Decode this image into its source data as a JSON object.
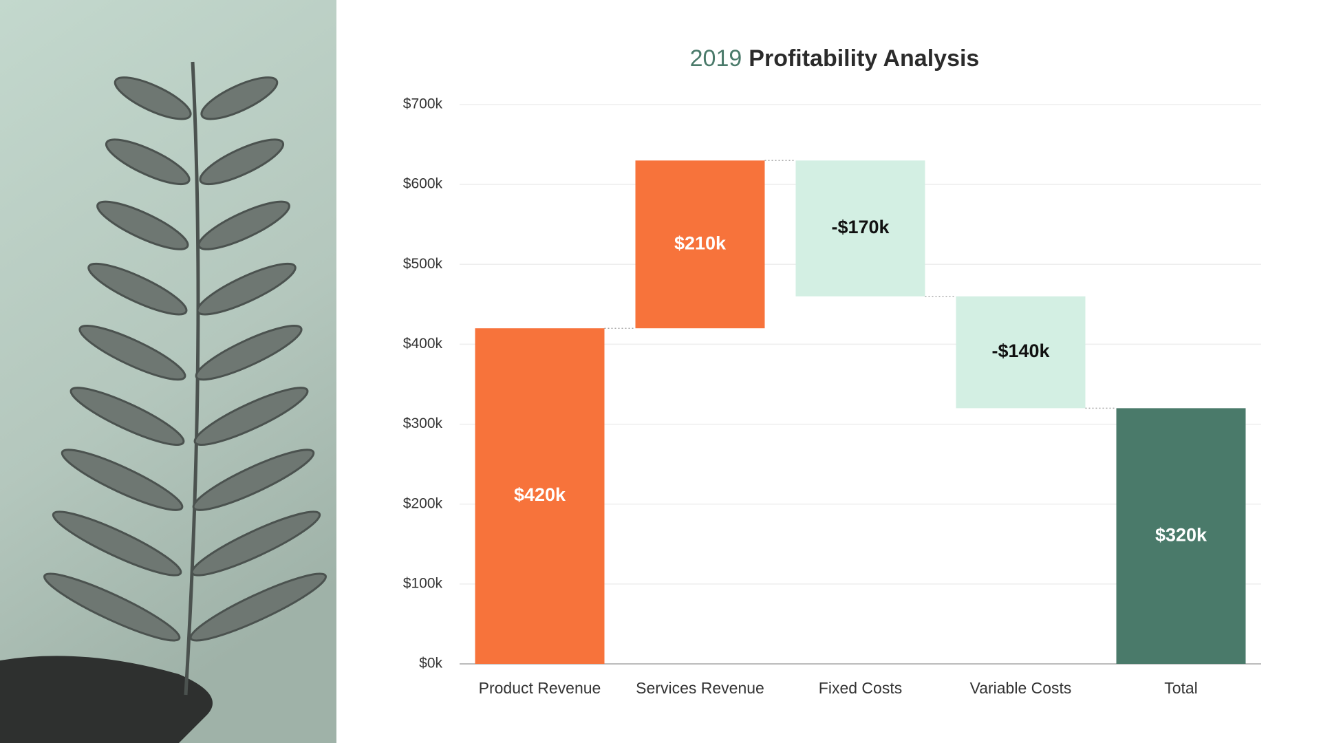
{
  "chart_data": {
    "type": "waterfall",
    "title_parts": [
      "2019",
      "Profitability Analysis"
    ],
    "title_colors": [
      "#4a7a6a",
      "#2b2b2b"
    ],
    "categories": [
      "Product Revenue",
      "Services Revenue",
      "Fixed Costs",
      "Variable Costs",
      "Total"
    ],
    "values": [
      420,
      210,
      -170,
      -140,
      320
    ],
    "value_labels": [
      "$420k",
      "$210k",
      "-$170k",
      "-$140k",
      "$320k"
    ],
    "totals": [
      false,
      false,
      false,
      false,
      true
    ],
    "colors": [
      "#f7733b",
      "#f7733b",
      "#d3efe3",
      "#d3efe3",
      "#4a7a6a"
    ],
    "label_colors": [
      "#ffffff",
      "#ffffff",
      "#111111",
      "#111111",
      "#ffffff"
    ],
    "ylim": [
      0,
      700
    ],
    "yticks": [
      {
        "value": 0,
        "label": "$0k"
      },
      {
        "value": 100,
        "label": "$100k"
      },
      {
        "value": 200,
        "label": "$200k"
      },
      {
        "value": 300,
        "label": "$300k"
      },
      {
        "value": 400,
        "label": "$400k"
      },
      {
        "value": 500,
        "label": "$500k"
      },
      {
        "value": 600,
        "label": "$600k"
      },
      {
        "value": 700,
        "label": "$700k"
      }
    ],
    "grid": true
  }
}
